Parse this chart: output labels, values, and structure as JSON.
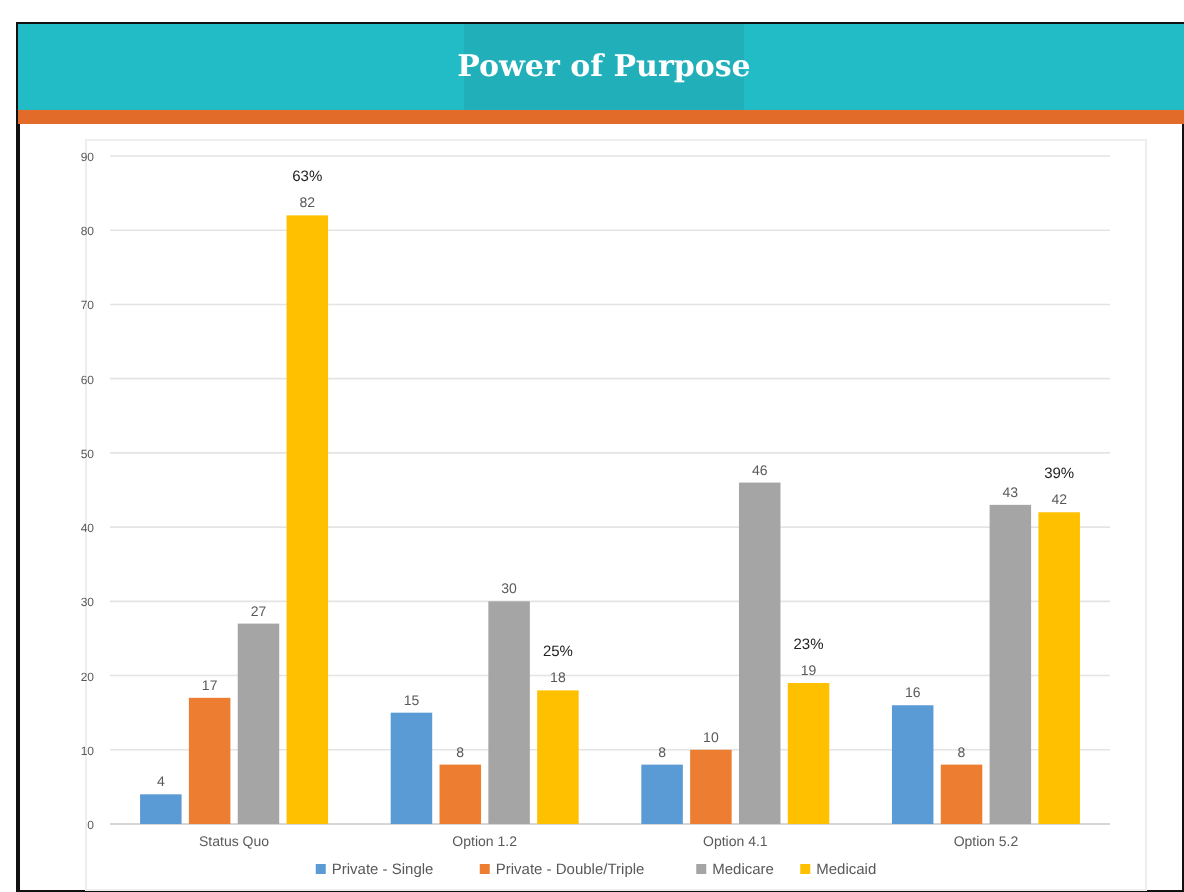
{
  "chart_data": {
    "type": "bar",
    "title": "Power of Purpose",
    "categories": [
      "Status Quo",
      "Option 1.2",
      "Option 4.1",
      "Option 5.2"
    ],
    "series": [
      {
        "name": "Private - Single",
        "color": "#5b9bd5",
        "values": [
          4,
          15,
          8,
          16
        ]
      },
      {
        "name": "Private - Double/Triple",
        "color": "#ed7d31",
        "values": [
          17,
          8,
          10,
          8
        ]
      },
      {
        "name": "Medicare",
        "color": "#a5a5a5",
        "values": [
          27,
          30,
          46,
          43
        ]
      },
      {
        "name": "Medicaid",
        "color": "#ffc000",
        "values": [
          82,
          18,
          19,
          42
        ]
      }
    ],
    "ylim": [
      0,
      90
    ],
    "yticks": [
      0,
      10,
      20,
      30,
      40,
      50,
      60,
      70,
      80,
      90
    ],
    "grid": "y",
    "legend": "bottom",
    "data_labels": true,
    "annotations": [
      "63%",
      "25%",
      "23%",
      "39%"
    ]
  }
}
